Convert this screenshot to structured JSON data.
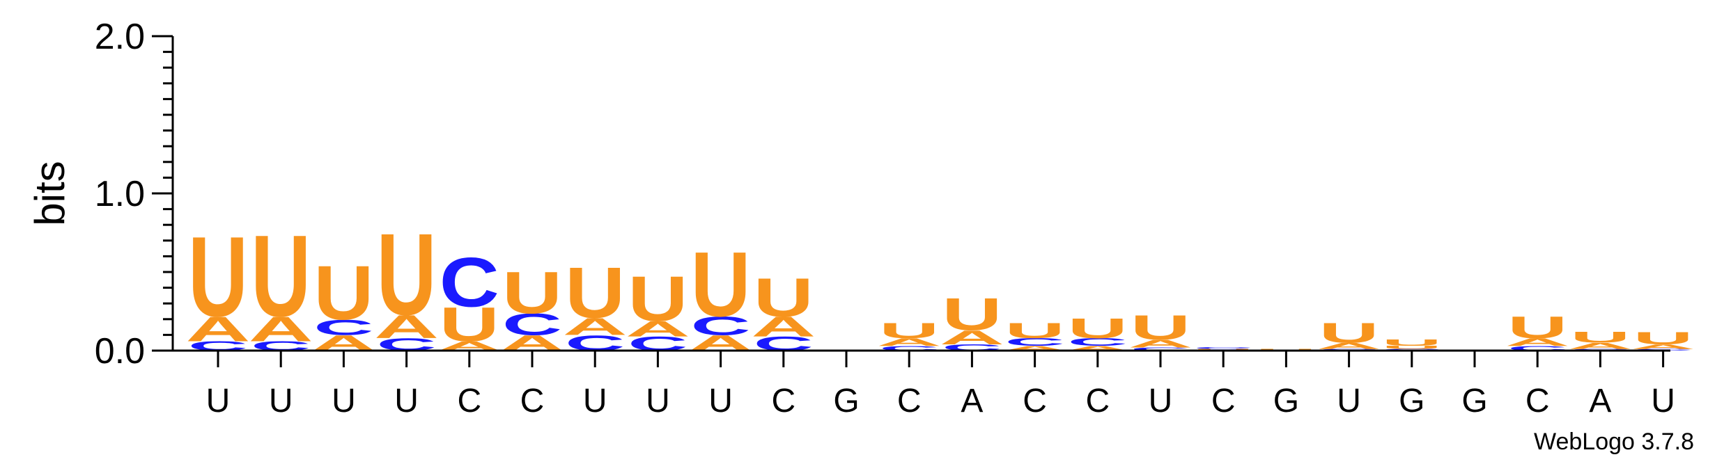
{
  "chart_data": {
    "type": "sequence-logo",
    "ylabel": "bits",
    "ylim": [
      0,
      2.0
    ],
    "yticks": [
      "0.0",
      "1.0",
      "2.0"
    ],
    "colors": {
      "A": "#f7941d",
      "U": "#f7941d",
      "C": "#1a1aff",
      "G": "#1a1aff"
    },
    "positions": [
      {
        "label": "U",
        "stack": [
          {
            "letter": "C",
            "bits": 0.06
          },
          {
            "letter": "A",
            "bits": 0.16
          },
          {
            "letter": "U",
            "bits": 0.52
          }
        ]
      },
      {
        "label": "U",
        "stack": [
          {
            "letter": "C",
            "bits": 0.06
          },
          {
            "letter": "A",
            "bits": 0.16
          },
          {
            "letter": "U",
            "bits": 0.53
          }
        ]
      },
      {
        "label": "U",
        "stack": [
          {
            "letter": "A",
            "bits": 0.1
          },
          {
            "letter": "C",
            "bits": 0.1
          },
          {
            "letter": "U",
            "bits": 0.35
          }
        ]
      },
      {
        "label": "U",
        "stack": [
          {
            "letter": "C",
            "bits": 0.08
          },
          {
            "letter": "A",
            "bits": 0.15
          },
          {
            "letter": "U",
            "bits": 0.53
          }
        ]
      },
      {
        "label": "C",
        "stack": [
          {
            "letter": "A",
            "bits": 0.06
          },
          {
            "letter": "U",
            "bits": 0.22
          },
          {
            "letter": "C",
            "bits": 0.32
          }
        ]
      },
      {
        "label": "C",
        "stack": [
          {
            "letter": "A",
            "bits": 0.1
          },
          {
            "letter": "C",
            "bits": 0.14
          },
          {
            "letter": "U",
            "bits": 0.27
          }
        ]
      },
      {
        "label": "U",
        "stack": [
          {
            "letter": "C",
            "bits": 0.1
          },
          {
            "letter": "A",
            "bits": 0.11
          },
          {
            "letter": "U",
            "bits": 0.33
          }
        ]
      },
      {
        "label": "U",
        "stack": [
          {
            "letter": "C",
            "bits": 0.09
          },
          {
            "letter": "A",
            "bits": 0.1
          },
          {
            "letter": "U",
            "bits": 0.29
          }
        ]
      },
      {
        "label": "U",
        "stack": [
          {
            "letter": "A",
            "bits": 0.1
          },
          {
            "letter": "C",
            "bits": 0.12
          },
          {
            "letter": "U",
            "bits": 0.42
          }
        ]
      },
      {
        "label": "C",
        "stack": [
          {
            "letter": "C",
            "bits": 0.09
          },
          {
            "letter": "A",
            "bits": 0.13
          },
          {
            "letter": "U",
            "bits": 0.25
          }
        ]
      },
      {
        "label": "G",
        "stack": []
      },
      {
        "label": "C",
        "stack": [
          {
            "letter": "C",
            "bits": 0.03
          },
          {
            "letter": "A",
            "bits": 0.05
          },
          {
            "letter": "U",
            "bits": 0.1
          }
        ]
      },
      {
        "label": "A",
        "stack": [
          {
            "letter": "C",
            "bits": 0.04
          },
          {
            "letter": "A",
            "bits": 0.09
          },
          {
            "letter": "U",
            "bits": 0.21
          }
        ]
      },
      {
        "label": "C",
        "stack": [
          {
            "letter": "A",
            "bits": 0.03
          },
          {
            "letter": "C",
            "bits": 0.05
          },
          {
            "letter": "U",
            "bits": 0.1
          }
        ]
      },
      {
        "label": "C",
        "stack": [
          {
            "letter": "A",
            "bits": 0.03
          },
          {
            "letter": "C",
            "bits": 0.05
          },
          {
            "letter": "U",
            "bits": 0.13
          }
        ]
      },
      {
        "label": "U",
        "stack": [
          {
            "letter": "C",
            "bits": 0.02
          },
          {
            "letter": "A",
            "bits": 0.05
          },
          {
            "letter": "U",
            "bits": 0.16
          }
        ]
      },
      {
        "label": "C",
        "stack": [
          {
            "letter": "U",
            "bits": 0.01
          },
          {
            "letter": "C",
            "bits": 0.01
          }
        ]
      },
      {
        "label": "G",
        "stack": [
          {
            "letter": "U",
            "bits": 0.01
          }
        ]
      },
      {
        "label": "U",
        "stack": [
          {
            "letter": "C",
            "bits": 0.01
          },
          {
            "letter": "A",
            "bits": 0.04
          },
          {
            "letter": "U",
            "bits": 0.13
          }
        ]
      },
      {
        "label": "G",
        "stack": [
          {
            "letter": "C",
            "bits": 0.01
          },
          {
            "letter": "U",
            "bits": 0.02
          },
          {
            "letter": "U",
            "bits": 0.04
          }
        ]
      },
      {
        "label": "G",
        "stack": []
      },
      {
        "label": "C",
        "stack": [
          {
            "letter": "C",
            "bits": 0.03
          },
          {
            "letter": "A",
            "bits": 0.05
          },
          {
            "letter": "U",
            "bits": 0.14
          }
        ]
      },
      {
        "label": "A",
        "stack": [
          {
            "letter": "C",
            "bits": 0.01
          },
          {
            "letter": "A",
            "bits": 0.04
          },
          {
            "letter": "U",
            "bits": 0.07
          }
        ]
      },
      {
        "label": "U",
        "stack": [
          {
            "letter": "C",
            "bits": 0.01
          },
          {
            "letter": "A",
            "bits": 0.03
          },
          {
            "letter": "U",
            "bits": 0.08
          }
        ]
      }
    ]
  },
  "footer": "WebLogo 3.7.8"
}
